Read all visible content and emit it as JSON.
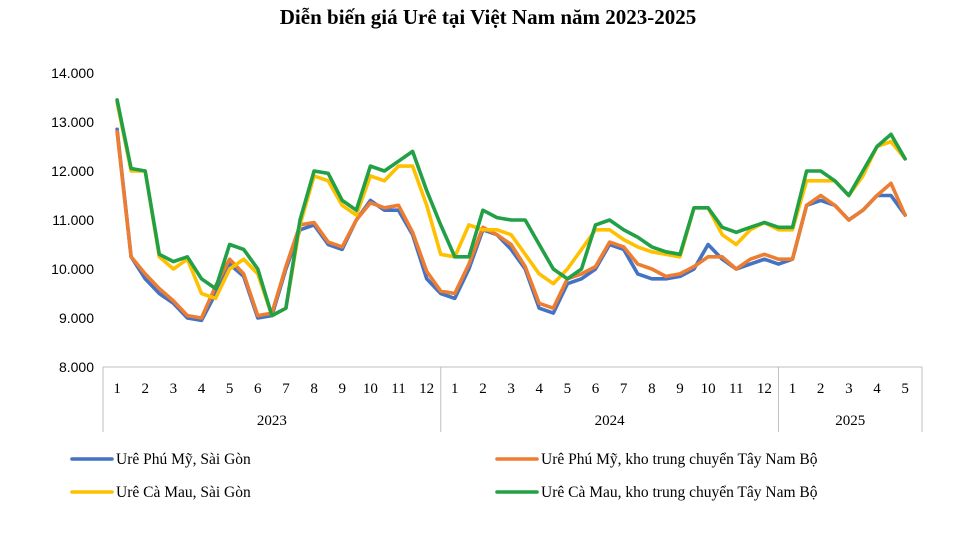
{
  "chart_data": {
    "type": "line",
    "title": "Diễn biến giá Urê tại Việt Nam năm 2023-2025",
    "xlabel": "",
    "ylabel": "",
    "ylim": [
      8000,
      14000
    ],
    "yticks": [
      "8.000",
      "9.000",
      "10.000",
      "11.000",
      "12.000",
      "13.000",
      "14.000"
    ],
    "ytick_values": [
      8000,
      9000,
      10000,
      11000,
      12000,
      13000,
      14000
    ],
    "grid": false,
    "legend_position": "bottom",
    "year_groups": [
      {
        "label": "2023",
        "months": [
          "1",
          "2",
          "3",
          "4",
          "5",
          "6",
          "7",
          "8",
          "9",
          "10",
          "11",
          "12"
        ]
      },
      {
        "label": "2024",
        "months": [
          "1",
          "2",
          "3",
          "4",
          "5",
          "6",
          "7",
          "8",
          "9",
          "10",
          "11",
          "12"
        ]
      },
      {
        "label": "2025",
        "months": [
          "1",
          "2",
          "3",
          "4",
          "5"
        ]
      }
    ],
    "series": [
      {
        "name": "Urê Phú Mỹ, Sài Gòn",
        "color": "#4472C4",
        "values": [
          12850,
          10250,
          9800,
          9500,
          9300,
          9000,
          8950,
          9500,
          10100,
          9850,
          9000,
          9050,
          10000,
          10800,
          10900,
          10500,
          10400,
          11000,
          11400,
          11200,
          11200,
          10700,
          9800,
          9500,
          9400,
          10000,
          10800,
          10700,
          10400,
          10000,
          9200,
          9100,
          9700,
          9800,
          10000,
          10500,
          10400,
          9900,
          9800,
          9800,
          9850,
          10000,
          10500,
          10200,
          10000,
          10100,
          10200,
          10100,
          10200,
          11300,
          11400,
          11300,
          11000,
          11200,
          11500,
          11500,
          11100
        ]
      },
      {
        "name": "Urê Phú Mỹ, kho trung chuyển Tây Nam Bộ",
        "color": "#ED7D31",
        "values": [
          12800,
          10250,
          9900,
          9600,
          9350,
          9050,
          9000,
          9650,
          10200,
          9900,
          9050,
          9100,
          10050,
          10900,
          10950,
          10550,
          10450,
          11000,
          11350,
          11250,
          11300,
          10750,
          9950,
          9550,
          9500,
          10100,
          10850,
          10700,
          10500,
          10050,
          9300,
          9200,
          9800,
          9900,
          10050,
          10550,
          10450,
          10100,
          10000,
          9850,
          9900,
          10050,
          10250,
          10250,
          10000,
          10200,
          10300,
          10200,
          10200,
          11300,
          11500,
          11300,
          11000,
          11200,
          11500,
          11750,
          11100
        ]
      },
      {
        "name": "Urê Cà Mau, Sài Gòn",
        "color": "#FFC000",
        "values": [
          13400,
          12000,
          12000,
          10250,
          10000,
          10200,
          9500,
          9400,
          10000,
          10200,
          9900,
          9050,
          9200,
          10900,
          11900,
          11800,
          11300,
          11100,
          11900,
          11800,
          12100,
          12100,
          11300,
          10300,
          10250,
          10900,
          10800,
          10800,
          10700,
          10300,
          9900,
          9700,
          10000,
          10400,
          10800,
          10800,
          10600,
          10450,
          10350,
          10300,
          10250,
          11250,
          11250,
          10700,
          10500,
          10800,
          10950,
          10800,
          10800,
          11800,
          11800,
          11800,
          11500,
          11900,
          12500,
          12600,
          12250
        ]
      },
      {
        "name": "Urê Cà Mau, kho trung chuyển Tây Nam Bộ",
        "color": "#22A046",
        "values": [
          13450,
          12050,
          12000,
          10300,
          10150,
          10250,
          9800,
          9600,
          10500,
          10400,
          10000,
          9050,
          9200,
          11000,
          12000,
          11950,
          11400,
          11200,
          12100,
          12000,
          12200,
          12400,
          11600,
          10900,
          10250,
          10250,
          11200,
          11050,
          11000,
          11000,
          10500,
          10000,
          9800,
          10000,
          10900,
          11000,
          10800,
          10650,
          10450,
          10350,
          10300,
          11250,
          11250,
          10850,
          10750,
          10850,
          10950,
          10850,
          10850,
          12000,
          12000,
          11800,
          11500,
          12000,
          12500,
          12750,
          12250
        ]
      }
    ]
  }
}
